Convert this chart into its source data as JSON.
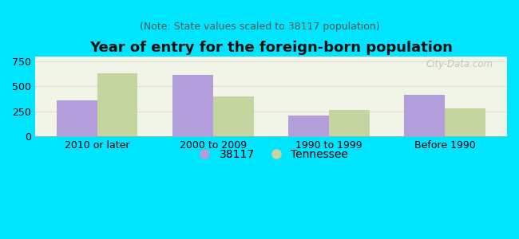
{
  "title": "Year of entry for the foreign-born population",
  "subtitle": "(Note: State values scaled to 38117 population)",
  "categories": [
    "2010 or later",
    "2000 to 2009",
    "1990 to 1999",
    "Before 1990"
  ],
  "values_38117": [
    360,
    610,
    205,
    410
  ],
  "values_tennessee": [
    630,
    400,
    260,
    275
  ],
  "color_38117": "#b39ddb",
  "color_tennessee": "#c5d5a0",
  "ylim": [
    0,
    800
  ],
  "yticks": [
    0,
    250,
    500,
    750
  ],
  "background_outer": "#00e5ff",
  "background_plot": "#f0f5e8",
  "bar_width": 0.35,
  "legend_label_38117": "38117",
  "legend_label_tennessee": "Tennessee",
  "title_fontsize": 13,
  "subtitle_fontsize": 9,
  "tick_fontsize": 9,
  "legend_fontsize": 10,
  "watermark": "City-Data.com"
}
